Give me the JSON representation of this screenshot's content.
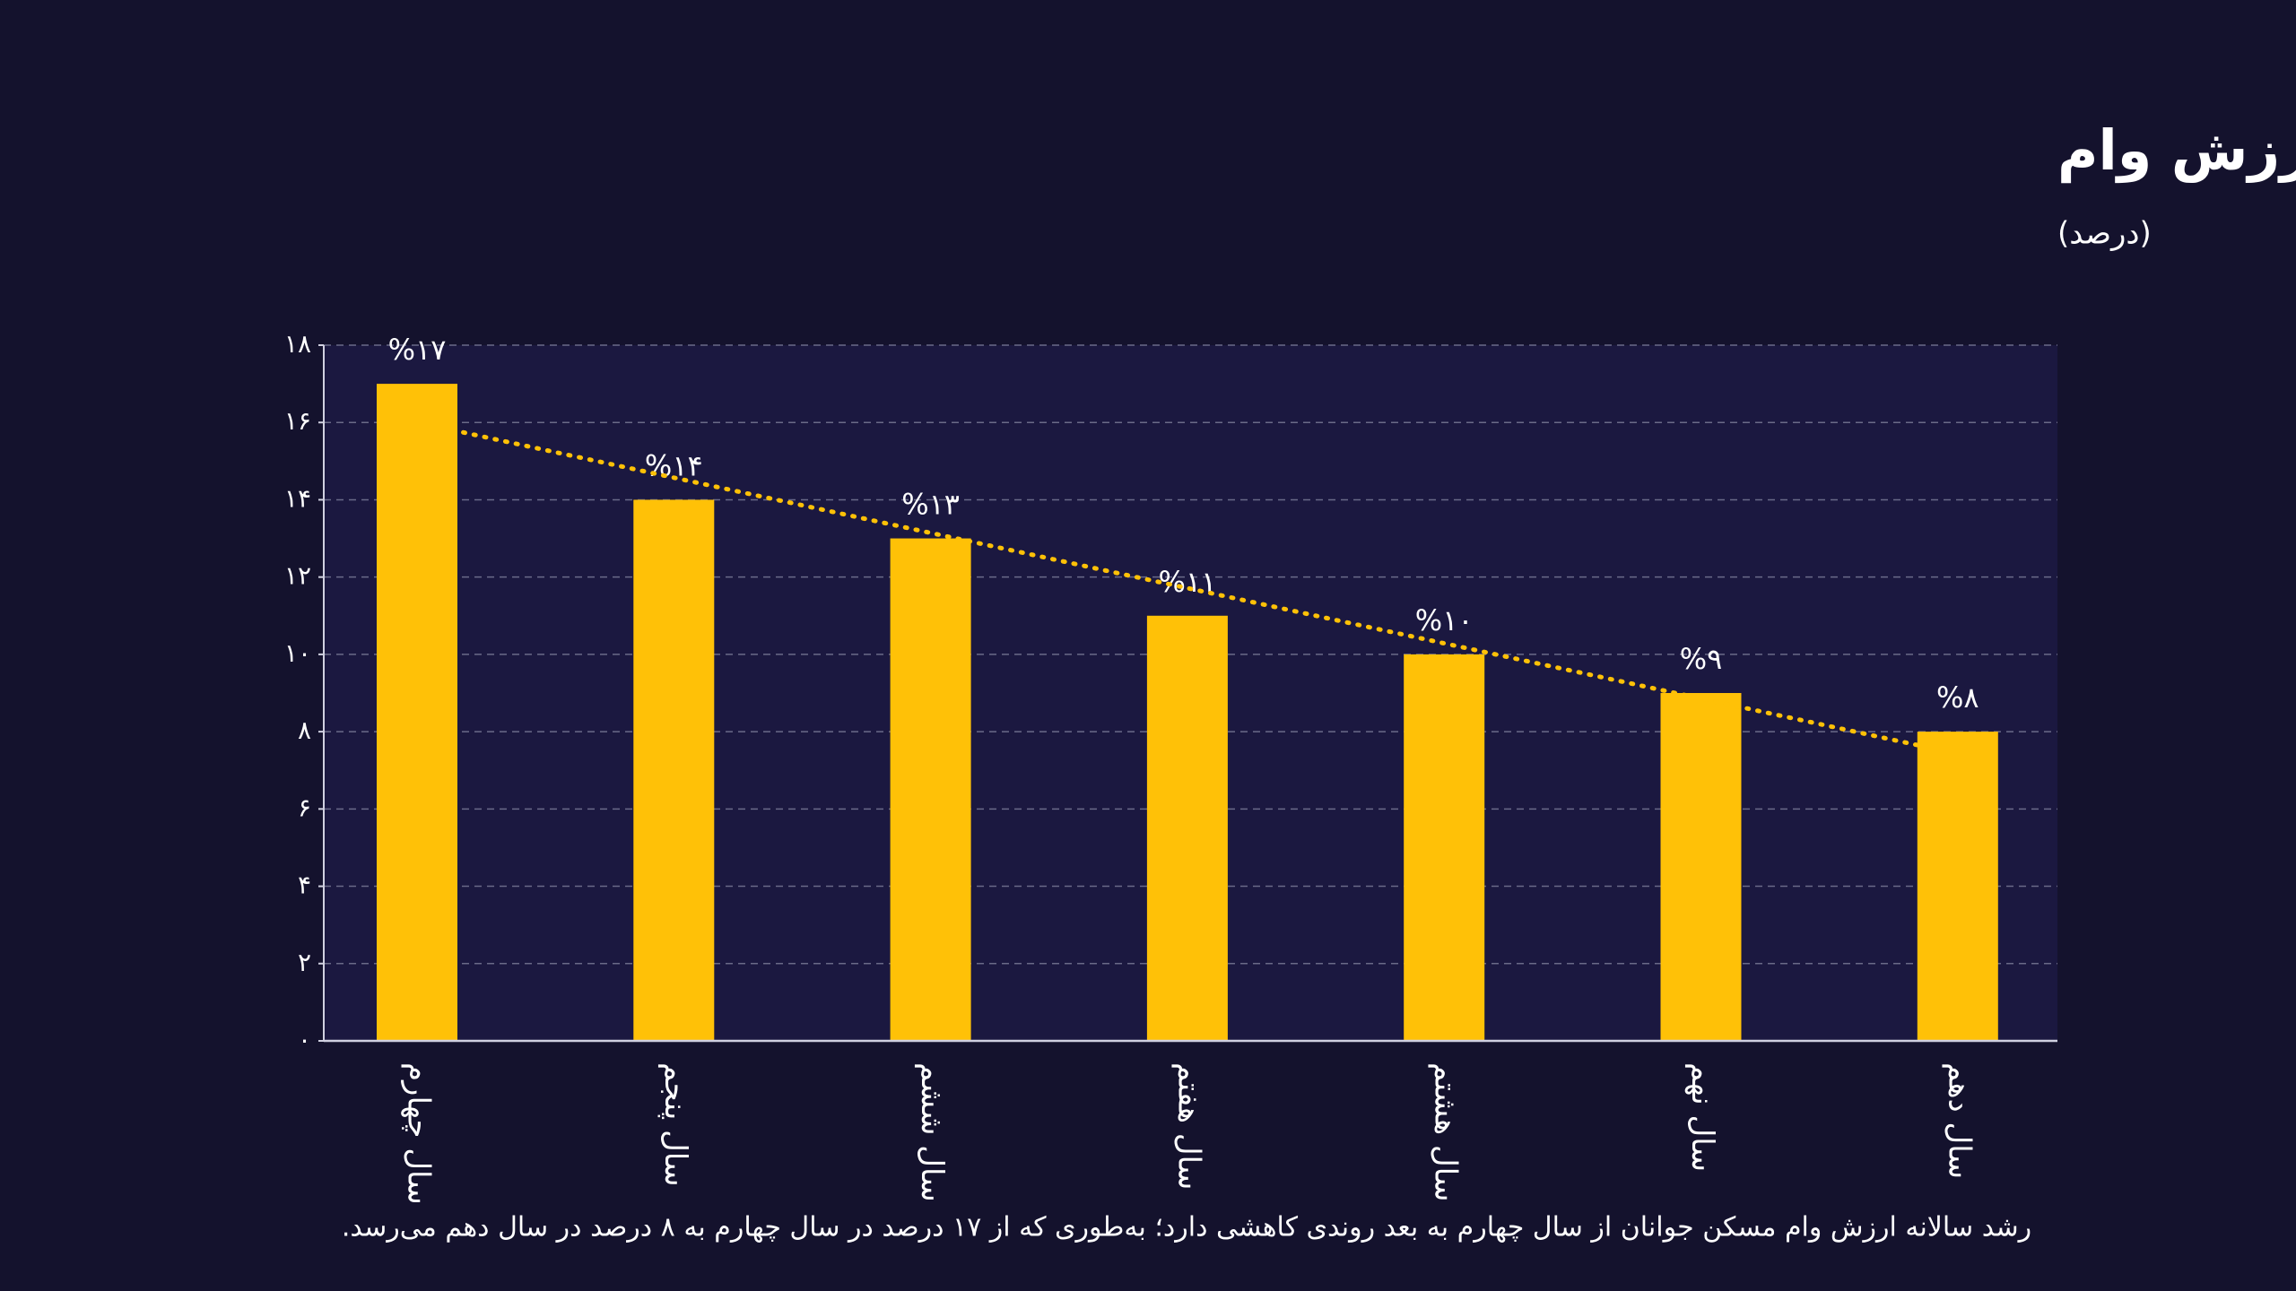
{
  "chart_data": {
    "type": "bar",
    "title": "رشد سالانه ارزش وام",
    "subtitle": "(درصد)",
    "caption": "رشد سالانه ارزش وام مسکن جوانان از سال چهارم به بعد روندی کاهشی دارد؛ به‌طوری که از ۱۷ درصد در سال چهارم به ۸ درصد در سال دهم می‌رسد.",
    "categories": [
      "سال چهارم",
      "سال پنجم",
      "سال ششم",
      "سال هفتم",
      "سال هشتم",
      "سال نهم",
      "سال دهم"
    ],
    "values": [
      17,
      14,
      13,
      11,
      10,
      9,
      8
    ],
    "value_labels": [
      "%۱۷",
      "%۱۴",
      "%۱۳",
      "%۱۱",
      "%۱۰",
      "%۹",
      "%۸"
    ],
    "color": "#ffc107",
    "ylim": [
      0,
      18
    ],
    "yticks": [
      {
        "value": 0,
        "label": "۰"
      },
      {
        "value": 2,
        "label": "۲"
      },
      {
        "value": 4,
        "label": "۴"
      },
      {
        "value": 6,
        "label": "۶"
      },
      {
        "value": 8,
        "label": "۸"
      },
      {
        "value": 10,
        "label": "۱۰"
      },
      {
        "value": 12,
        "label": "۱۲"
      },
      {
        "value": 14,
        "label": "۱۴"
      },
      {
        "value": 16,
        "label": "۱۶"
      },
      {
        "value": 18,
        "label": "۱۸"
      }
    ],
    "grid": true,
    "trendline": true
  }
}
